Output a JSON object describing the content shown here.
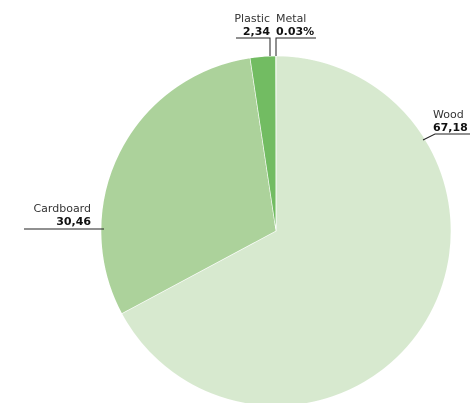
{
  "chart_data": {
    "type": "pie",
    "start_angle_deg": 0,
    "direction": "clockwise",
    "slices": [
      {
        "label": "Wood",
        "value": 67.18,
        "display": "67,18",
        "color": "#d7e9cf"
      },
      {
        "label": "Cardboard",
        "value": 30.46,
        "display": "30,46",
        "color": "#acd29b"
      },
      {
        "label": "Plastic",
        "value": 2.34,
        "display": "2,34",
        "color": "#72bc62"
      },
      {
        "label": "Metal",
        "value": 0.03,
        "display": "0.03%",
        "color": "#4f9e43"
      }
    ]
  }
}
